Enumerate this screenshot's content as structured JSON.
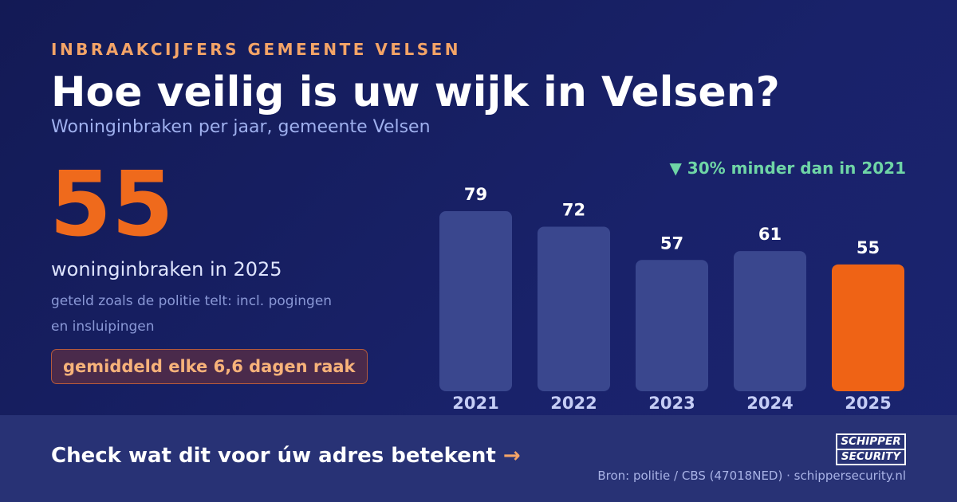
{
  "header": {
    "kicker": "INBRAAKCIJFERS GEMEENTE VELSEN",
    "title": "Hoe veilig is uw wijk in Velsen?",
    "subtitle": "Woninginbraken per jaar, gemeente Velsen"
  },
  "highlight": {
    "value": "55",
    "caption": "woninginbraken in 2025",
    "note": "geteld zoals de politie telt: incl. pogingen en insluipingen",
    "pill": "gemiddeld elke 6,6 dagen raak"
  },
  "change_label": "▼ 30% minder dan in 2021",
  "chart_data": {
    "type": "bar",
    "categories": [
      "2021",
      "2022",
      "2023",
      "2024",
      "2025"
    ],
    "values": [
      79,
      72,
      57,
      61,
      55
    ],
    "ylim": [
      0,
      79
    ],
    "highlight_category": "2025",
    "colors": {
      "bar": "#3a478e",
      "highlight": "#ef6315",
      "label": "#ffffff",
      "tick": "#c5cdf5"
    },
    "grid": false
  },
  "footer": {
    "cta": "Check wat dit voor úw adres betekent",
    "cta_arrow": "→",
    "logo_top": "SCHIPPER",
    "logo_bottom": "SECURITY",
    "source": "Bron: politie / CBS (47018NED) · schippersecurity.nl"
  }
}
